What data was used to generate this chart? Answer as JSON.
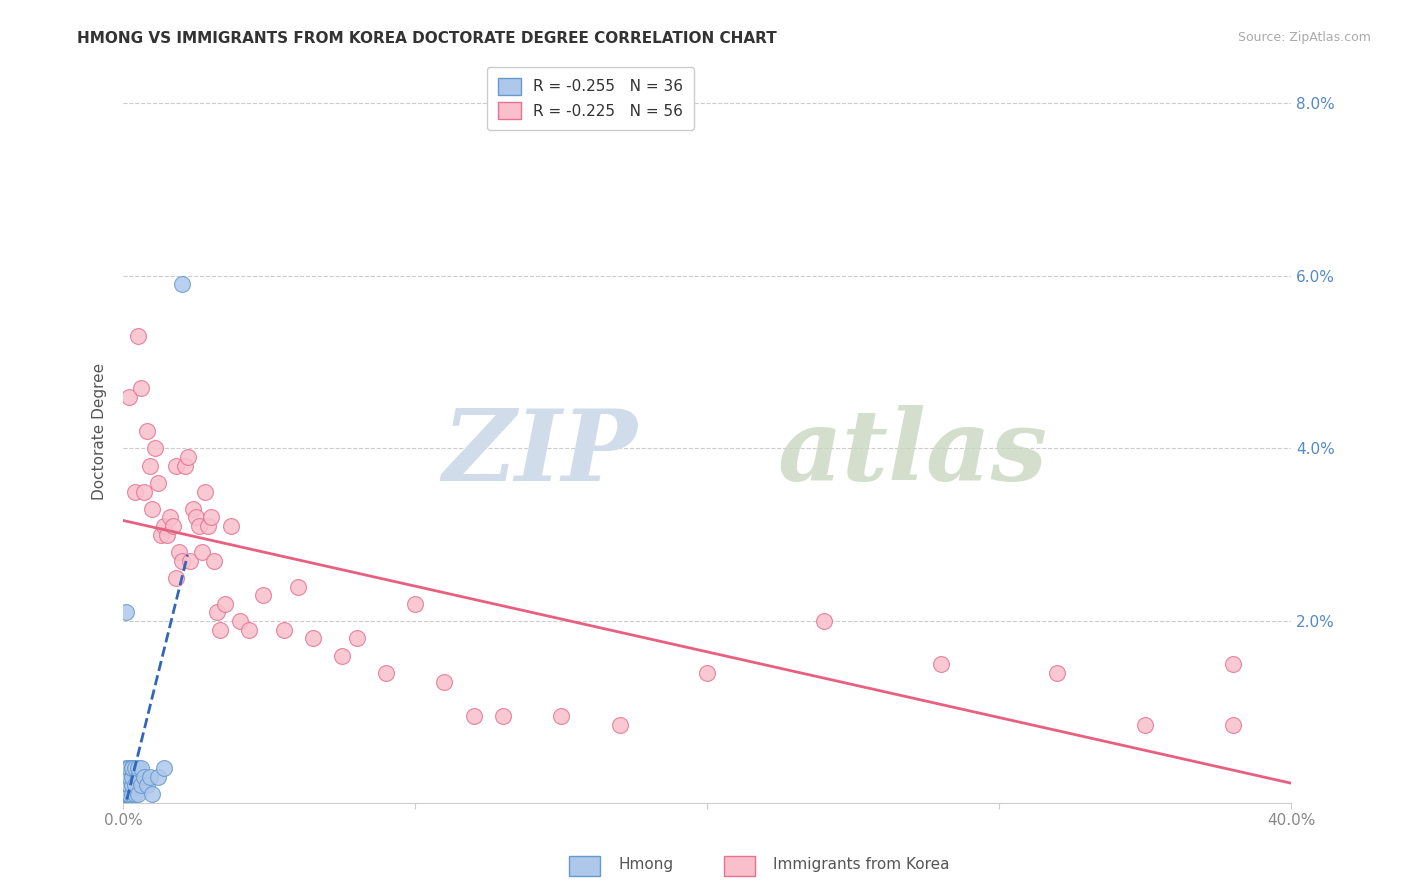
{
  "title": "HMONG VS IMMIGRANTS FROM KOREA DOCTORATE DEGREE CORRELATION CHART",
  "source": "Source: ZipAtlas.com",
  "ylabel": "Doctorate Degree",
  "xlim": [
    0.0,
    0.4
  ],
  "ylim": [
    -0.001,
    0.085
  ],
  "watermark_zip": "ZIP",
  "watermark_atlas": "atlas",
  "legend_line1": "R = -0.255   N = 36",
  "legend_line2": "R = -0.225   N = 56",
  "hmong_color": "#adc8eb",
  "hmong_edge": "#6699cc",
  "korea_color": "#f9c0cc",
  "korea_edge": "#e87090",
  "trendline_hmong_color": "#3366bb",
  "trendline_korea_color": "#e86080",
  "background_color": "#ffffff",
  "grid_color": "#cccccc",
  "ytick_color": "#5588cc",
  "xtick_color": "#888888",
  "title_color": "#333333",
  "source_color": "#aaaaaa",
  "ylabel_color": "#555555",
  "hmong_x": [
    0.0,
    0.0,
    0.001,
    0.001,
    0.001,
    0.001,
    0.001,
    0.001,
    0.001,
    0.002,
    0.002,
    0.002,
    0.002,
    0.002,
    0.002,
    0.002,
    0.003,
    0.003,
    0.003,
    0.003,
    0.003,
    0.004,
    0.004,
    0.004,
    0.005,
    0.005,
    0.005,
    0.006,
    0.006,
    0.007,
    0.008,
    0.009,
    0.01,
    0.012,
    0.014,
    0.02
  ],
  "hmong_y": [
    0.0,
    0.0,
    0.0,
    0.0,
    0.0,
    0.001,
    0.002,
    0.003,
    0.021,
    0.0,
    0.0,
    0.001,
    0.001,
    0.002,
    0.003,
    0.003,
    0.0,
    0.001,
    0.002,
    0.003,
    0.003,
    0.0,
    0.001,
    0.003,
    0.0,
    0.002,
    0.003,
    0.001,
    0.003,
    0.002,
    0.001,
    0.002,
    0.0,
    0.002,
    0.003,
    0.059
  ],
  "korea_x": [
    0.002,
    0.004,
    0.005,
    0.006,
    0.007,
    0.008,
    0.009,
    0.01,
    0.011,
    0.012,
    0.013,
    0.014,
    0.015,
    0.016,
    0.017,
    0.018,
    0.018,
    0.019,
    0.02,
    0.021,
    0.022,
    0.023,
    0.024,
    0.025,
    0.026,
    0.027,
    0.028,
    0.029,
    0.03,
    0.031,
    0.032,
    0.033,
    0.035,
    0.037,
    0.04,
    0.043,
    0.048,
    0.055,
    0.065,
    0.075,
    0.09,
    0.11,
    0.13,
    0.15,
    0.17,
    0.2,
    0.24,
    0.28,
    0.32,
    0.35,
    0.38,
    0.06,
    0.08,
    0.1,
    0.12,
    0.38
  ],
  "korea_y": [
    0.046,
    0.035,
    0.053,
    0.047,
    0.035,
    0.042,
    0.038,
    0.033,
    0.04,
    0.036,
    0.03,
    0.031,
    0.03,
    0.032,
    0.031,
    0.025,
    0.038,
    0.028,
    0.027,
    0.038,
    0.039,
    0.027,
    0.033,
    0.032,
    0.031,
    0.028,
    0.035,
    0.031,
    0.032,
    0.027,
    0.021,
    0.019,
    0.022,
    0.031,
    0.02,
    0.019,
    0.023,
    0.019,
    0.018,
    0.016,
    0.014,
    0.013,
    0.009,
    0.009,
    0.008,
    0.014,
    0.02,
    0.015,
    0.014,
    0.008,
    0.008,
    0.024,
    0.018,
    0.022,
    0.009,
    0.015
  ]
}
